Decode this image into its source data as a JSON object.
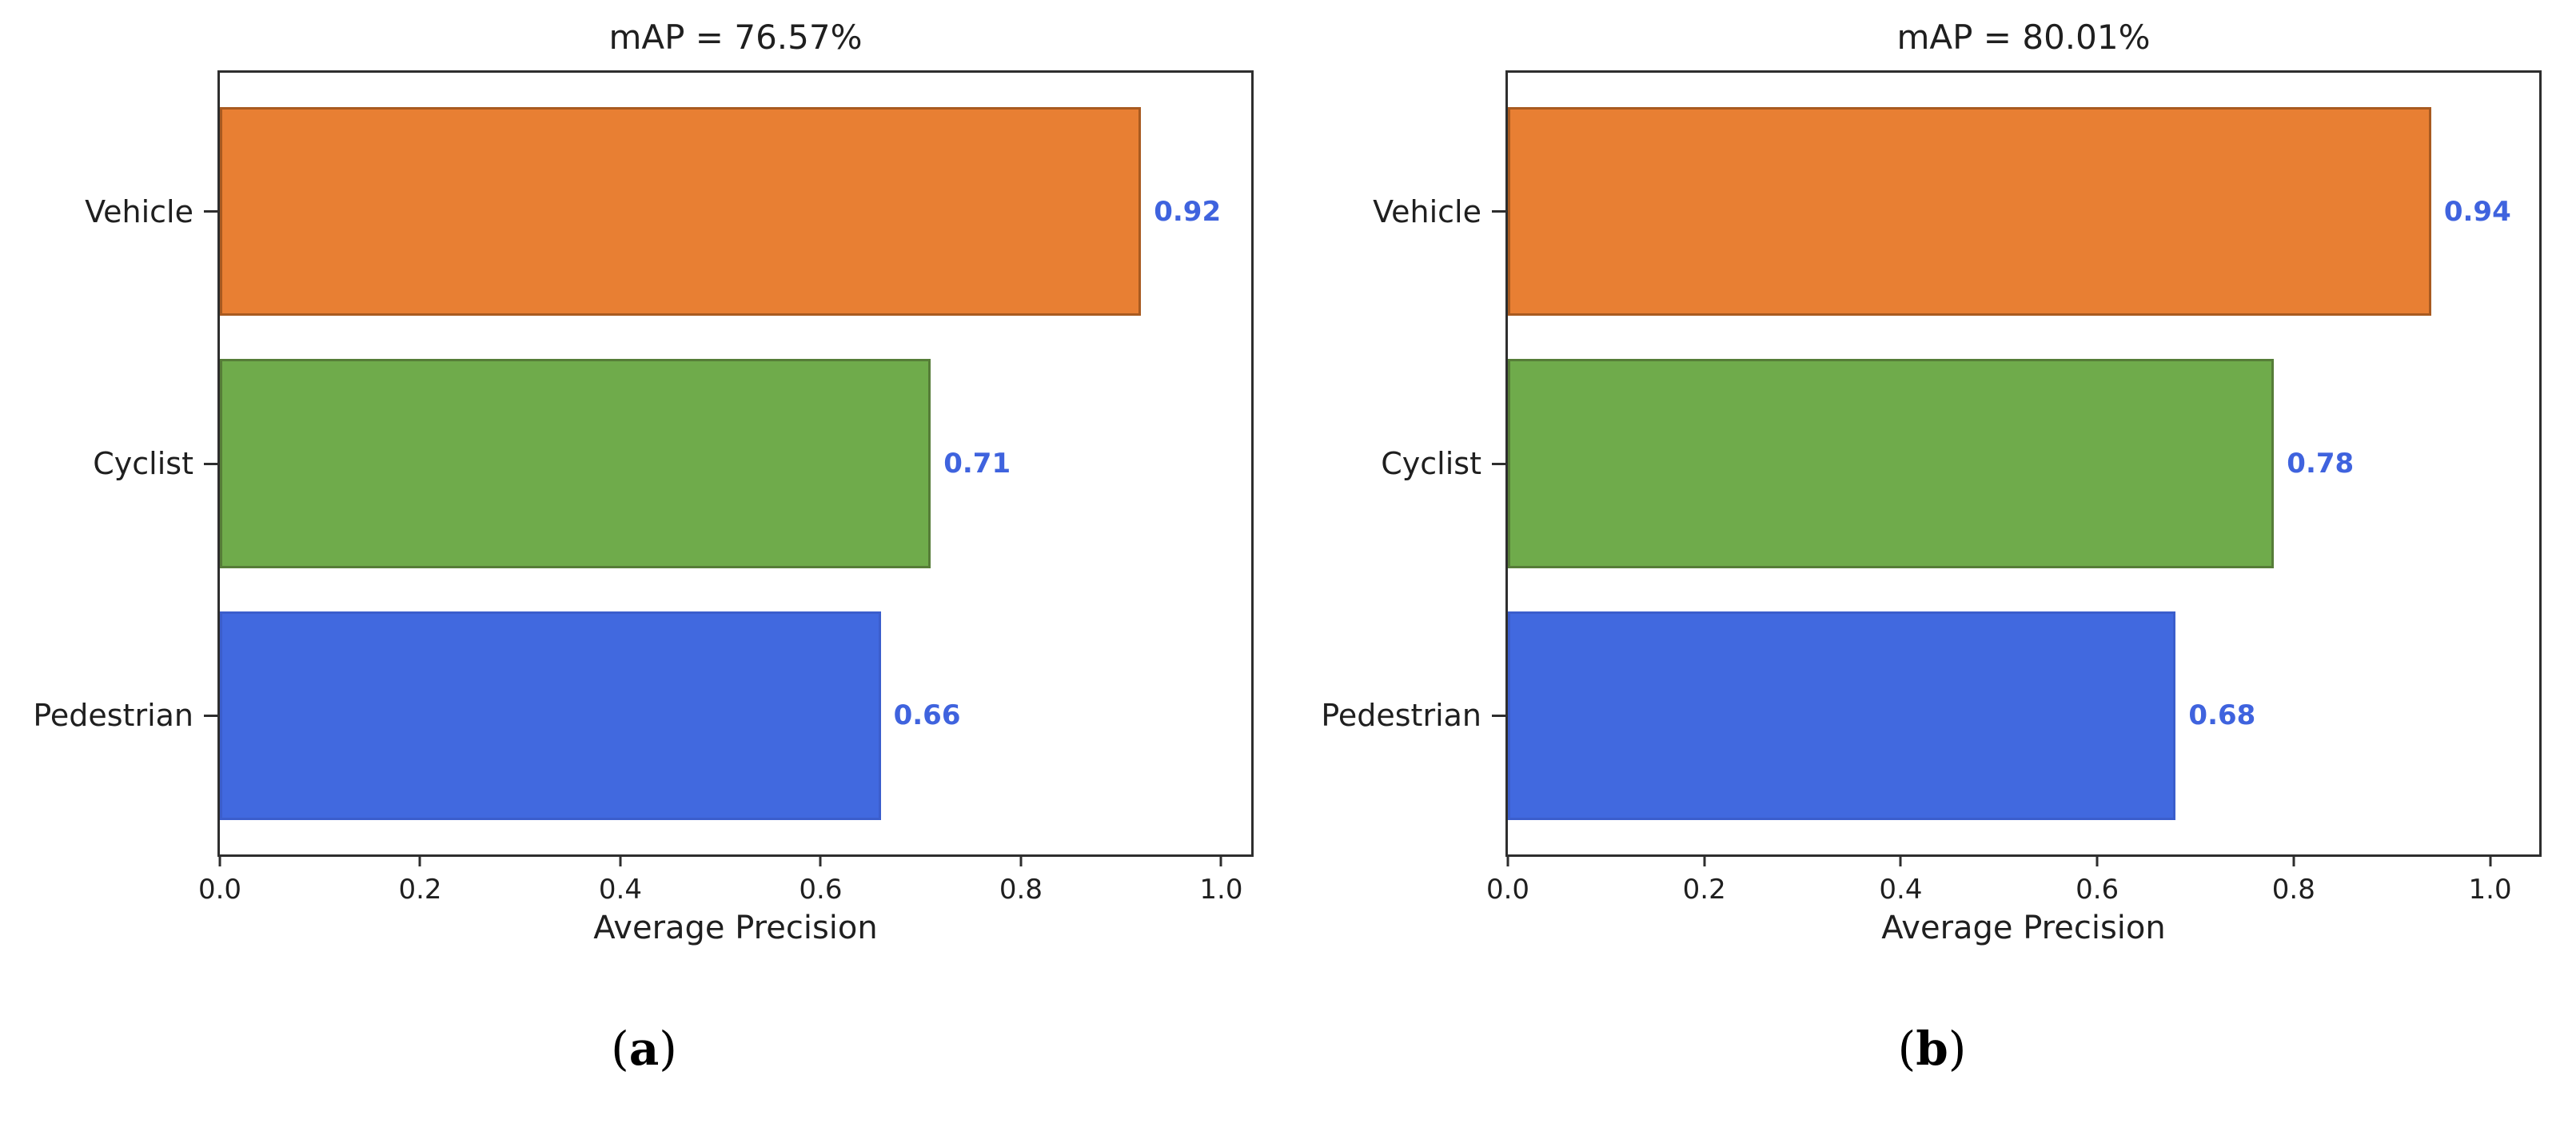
{
  "page": {
    "background": "#ffffff",
    "text_color": "#1f1f1f",
    "spine_color": "#2e2e2e"
  },
  "chart_data": [
    {
      "type": "bar",
      "orientation": "horizontal",
      "title": "mAP = 76.57%",
      "caption": "(a)",
      "categories": [
        "Vehicle",
        "Cyclist",
        "Pedestrian"
      ],
      "values": [
        0.92,
        0.71,
        0.66
      ],
      "value_labels": [
        "0.92",
        "0.71",
        "0.66"
      ],
      "xlabel": "Average Precision",
      "xlim": [
        0,
        1.03
      ],
      "xticks": [
        0,
        0.2,
        0.4,
        0.6,
        0.8,
        1.0
      ],
      "xtick_labels": [
        "0.0",
        "0.2",
        "0.4",
        "0.6",
        "0.8",
        "1.0"
      ],
      "bar_colors": [
        "#e87f33",
        "#6fab4b",
        "#4169df"
      ],
      "bar_edge_colors": [
        "#a85a20",
        "#567d38",
        "#3b5ecc"
      ],
      "value_label_color": "#3f63de",
      "grid": false,
      "legend": false
    },
    {
      "type": "bar",
      "orientation": "horizontal",
      "title": "mAP = 80.01%",
      "caption": "(b)",
      "categories": [
        "Vehicle",
        "Cyclist",
        "Pedestrian"
      ],
      "values": [
        0.94,
        0.78,
        0.68
      ],
      "value_labels": [
        "0.94",
        "0.78",
        "0.68"
      ],
      "xlabel": "Average Precision",
      "xlim": [
        0,
        1.05
      ],
      "xticks": [
        0,
        0.2,
        0.4,
        0.6,
        0.8,
        1.0
      ],
      "xtick_labels": [
        "0.0",
        "0.2",
        "0.4",
        "0.6",
        "0.8",
        "1.0"
      ],
      "bar_colors": [
        "#e87f33",
        "#6fab4b",
        "#4169df"
      ],
      "bar_edge_colors": [
        "#a85a20",
        "#567d38",
        "#3b5ecc"
      ],
      "value_label_color": "#3f63de",
      "grid": false,
      "legend": false
    }
  ]
}
